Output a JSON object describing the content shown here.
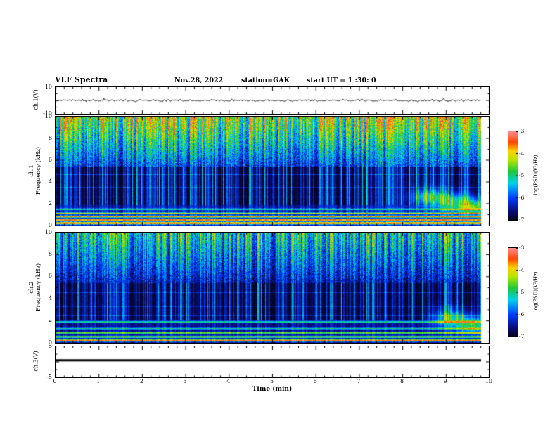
{
  "header": {
    "title": "VLF Spectra",
    "date": "Nov.28, 2022",
    "station": "station=GAK",
    "start_ut": "start UT =  1 :30: 0"
  },
  "chart_data": {
    "type": "multi-panel-spectrogram",
    "x_axis": {
      "label": "Time (min)",
      "range": [
        0,
        10
      ],
      "ticks": [
        0,
        1,
        2,
        3,
        4,
        5,
        6,
        7,
        8,
        9,
        10
      ],
      "data_end": 9.8
    },
    "panels": [
      {
        "id": "ch1_wave",
        "type": "line",
        "ylabel": "ch.1(V)",
        "ylim": [
          -10,
          10
        ],
        "yticks": [
          10,
          -10
        ],
        "description": "broadband noise around 0 V, amplitude about ±2 V with sporadic spikes",
        "model": {
          "seed": 99,
          "sigma": 1.15,
          "spike_prob": 0.01,
          "spike_amp": 3.5
        }
      },
      {
        "id": "ch1_spec",
        "type": "heatmap",
        "ylabel_lines": [
          "ch.1",
          "Frequency (kHz)"
        ],
        "ylim": [
          0,
          10
        ],
        "yticks": [
          10,
          8,
          6,
          4,
          2,
          0
        ],
        "psd_range_log": [
          -7,
          -3
        ],
        "description": "dense sferic vertical streaks above ~5.4 kHz, dark band 2-5 kHz with blue streaks, bright red/yellow horizontal lines below 1.5 kHz, cyan patches near 8.5-9.7 min at 1.5-3 kHz",
        "model": {
          "seed": 1337,
          "streak_prob": 0.42,
          "top_f": 5.4,
          "top_base": -6.55,
          "top_lift": 0.95,
          "top_amp": 2.7,
          "top_noise": 1.0,
          "mid_f": 1.9,
          "mid_amp": 1.7,
          "low_base": -6.7,
          "low_streak": 0.8,
          "hlines": [
            [
              2.6,
              0.05,
              0.5
            ],
            [
              3.5,
              0.05,
              0.4
            ],
            [
              4.7,
              0.05,
              0.5
            ]
          ],
          "bands": [
            [
              0.22,
              0.07,
              3.5
            ],
            [
              0.52,
              0.06,
              3.1
            ],
            [
              0.82,
              0.06,
              2.7
            ],
            [
              1.12,
              0.05,
              2.3
            ],
            [
              1.5,
              0.05,
              1.7
            ]
          ],
          "blobs": [
            [
              8.6,
              2.6,
              0.28,
              0.55,
              1.5
            ],
            [
              9.25,
              2.1,
              0.3,
              0.6,
              1.7
            ],
            [
              9.65,
              1.7,
              0.2,
              0.45,
              1.4
            ]
          ]
        }
      },
      {
        "id": "ch2_spec",
        "type": "heatmap",
        "ylabel_lines": [
          "ch.2",
          "Frequency (kHz)"
        ],
        "ylim": [
          0,
          10
        ],
        "yticks": [
          10,
          8,
          6,
          4,
          2,
          0
        ],
        "psd_range_log": [
          -7,
          -3
        ],
        "description": "similar to ch.1 but dimmer: sparser streaks above 5.4 kHz, horizontal lines below 2 kHz, cyan patches near 9-9.7 min",
        "model": {
          "seed": 2025,
          "streak_prob": 0.34,
          "top_f": 5.4,
          "top_base": -6.75,
          "top_lift": 0.55,
          "top_amp": 2.4,
          "top_noise": 0.9,
          "mid_f": 2.1,
          "mid_amp": 1.6,
          "low_base": -6.75,
          "low_streak": 0.6,
          "hlines": [
            [
              2.5,
              0.05,
              0.4
            ],
            [
              3.3,
              0.05,
              0.35
            ],
            [
              4.6,
              0.05,
              0.4
            ]
          ],
          "bands": [
            [
              0.22,
              0.07,
              3.1
            ],
            [
              0.55,
              0.06,
              2.5
            ],
            [
              0.9,
              0.06,
              2.1
            ],
            [
              1.3,
              0.05,
              1.5
            ],
            [
              1.9,
              0.06,
              1.6
            ]
          ],
          "blobs": [
            [
              9.1,
              2.2,
              0.3,
              0.6,
              1.5
            ],
            [
              9.6,
              1.6,
              0.22,
              0.5,
              1.6
            ]
          ]
        }
      },
      {
        "id": "ch3_wave",
        "type": "line",
        "ylabel": "ch.3(V)",
        "ylim": [
          -5,
          5
        ],
        "yticks": [
          5,
          -5
        ],
        "description": "constant flat thick line near 0.5 V for full record",
        "model": {
          "value": 0.5,
          "thickness_px": 3
        }
      }
    ],
    "colorbars": [
      {
        "label": "log(PSD)(V²/Hz)",
        "ticks": [
          -3,
          -4,
          -5,
          -6,
          -7
        ],
        "range": [
          -7,
          -3
        ]
      },
      {
        "label": "log(PSD)(V²/Hz)",
        "ticks": [
          -3,
          -4,
          -5,
          -6,
          -7
        ],
        "range": [
          -7,
          -3
        ]
      }
    ],
    "colormap_stops": [
      [
        0,
        "#050519"
      ],
      [
        0.1,
        "#0a0a78"
      ],
      [
        0.25,
        "#003cff"
      ],
      [
        0.42,
        "#00d2eb"
      ],
      [
        0.55,
        "#1ec83c"
      ],
      [
        0.68,
        "#b4e600"
      ],
      [
        0.78,
        "#ffd200"
      ],
      [
        0.88,
        "#ff4600"
      ],
      [
        1,
        "#ff8c8c"
      ]
    ],
    "value_range": [
      -7,
      -3
    ]
  }
}
